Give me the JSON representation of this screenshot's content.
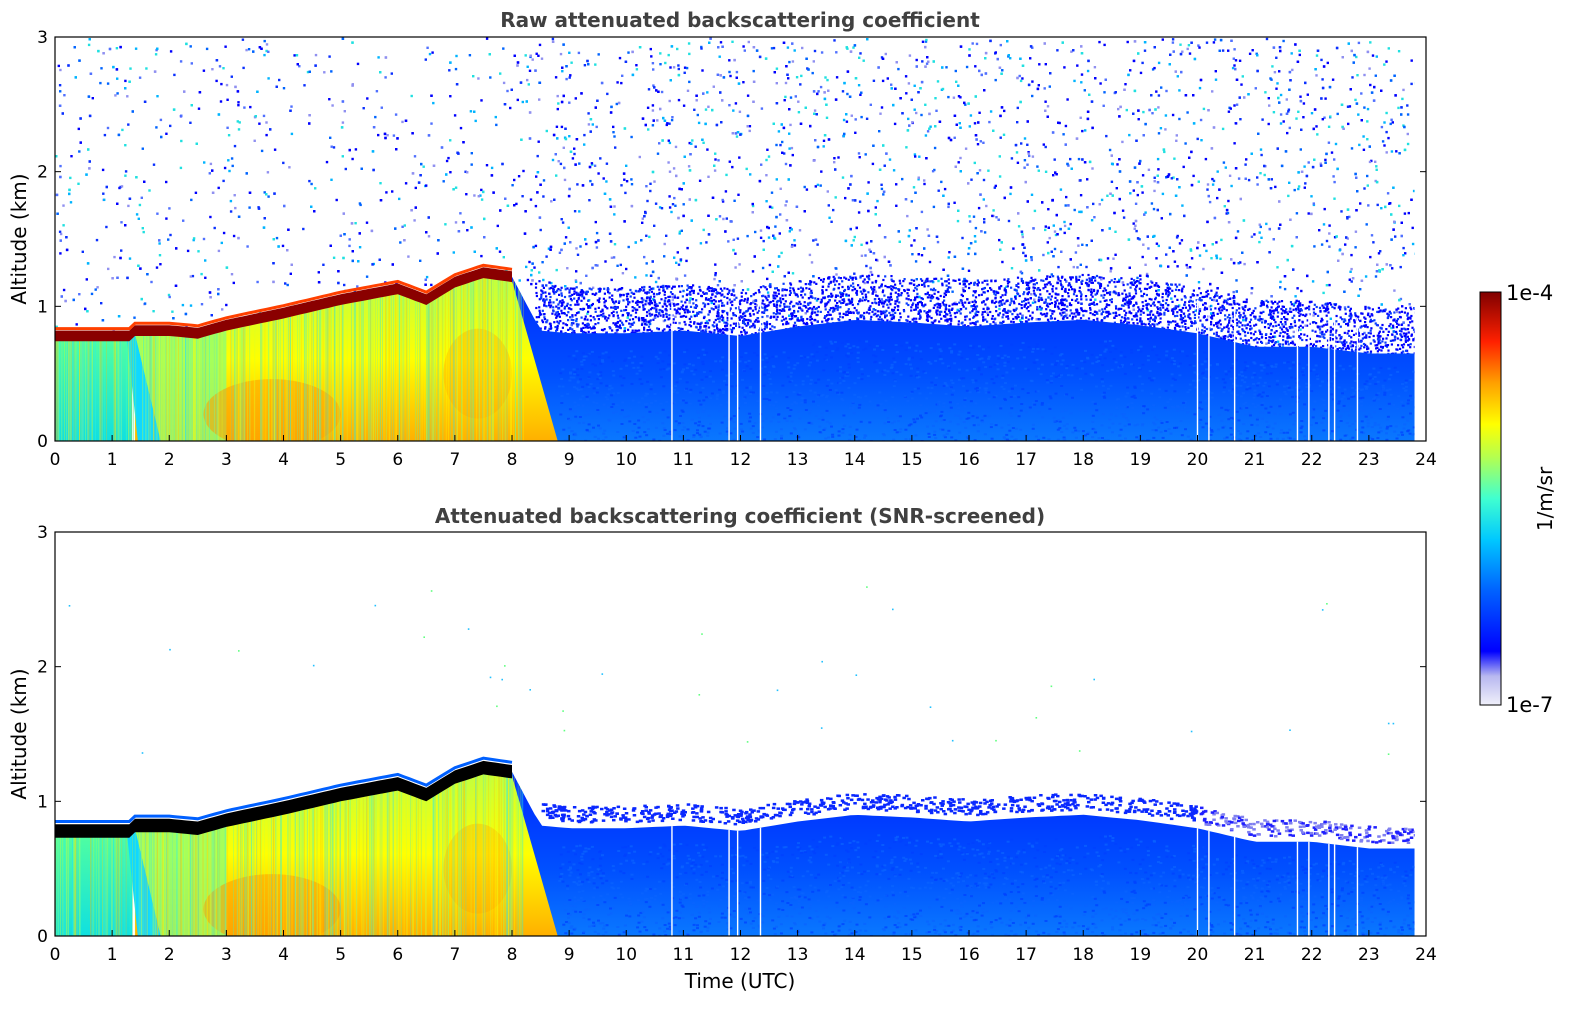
{
  "chart_data": [
    {
      "type": "heatmap",
      "title": "Raw attenuated backscattering coefficient",
      "xlabel": "",
      "ylabel": "Altitude (km)",
      "xlim": [
        0,
        24
      ],
      "ylim": [
        0,
        3
      ],
      "x_ticks": [
        "0",
        "1",
        "2",
        "3",
        "4",
        "5",
        "6",
        "7",
        "8",
        "9",
        "10",
        "11",
        "12",
        "13",
        "14",
        "15",
        "16",
        "17",
        "18",
        "19",
        "20",
        "21",
        "22",
        "23",
        "24"
      ],
      "y_ticks": [
        "0",
        "1",
        "2",
        "3"
      ],
      "data_end_hour": 23.8,
      "layer_top_km": {
        "x": [
          0,
          1.3,
          1.4,
          2,
          2.5,
          3,
          4,
          5,
          6,
          6.5,
          7,
          7.5,
          8,
          8.5,
          9,
          10,
          11,
          12,
          13,
          14,
          15,
          16,
          17,
          18,
          19,
          20,
          21,
          22,
          23,
          23.8
        ],
        "y": [
          0.78,
          0.78,
          0.82,
          0.82,
          0.8,
          0.86,
          0.95,
          1.05,
          1.13,
          1.05,
          1.18,
          1.25,
          1.22,
          0.82,
          0.8,
          0.8,
          0.82,
          0.78,
          0.85,
          0.9,
          0.88,
          0.85,
          0.88,
          0.9,
          0.86,
          0.8,
          0.7,
          0.7,
          0.65,
          0.65
        ]
      },
      "gap_lines_hour": [
        10.8,
        11.8,
        11.95,
        12.35,
        20.0,
        20.2,
        20.65,
        21.75,
        21.95,
        22.3,
        22.4,
        22.8
      ],
      "noisy_above_layer": true
    },
    {
      "type": "heatmap",
      "title": "Attenuated backscattering coefficient (SNR-screened)",
      "xlabel": "Time (UTC)",
      "ylabel": "Altitude (km)",
      "xlim": [
        0,
        24
      ],
      "ylim": [
        0,
        3
      ],
      "x_ticks": [
        "0",
        "1",
        "2",
        "3",
        "4",
        "5",
        "6",
        "7",
        "8",
        "9",
        "10",
        "11",
        "12",
        "13",
        "14",
        "15",
        "16",
        "17",
        "18",
        "19",
        "20",
        "21",
        "22",
        "23",
        "24"
      ],
      "y_ticks": [
        "0",
        "1",
        "2",
        "3"
      ],
      "data_end_hour": 23.8,
      "gap_lines_hour": [
        10.8,
        11.8,
        11.95,
        12.35,
        20.0,
        20.2,
        20.65,
        21.75,
        21.95,
        22.3,
        22.4,
        22.8
      ],
      "noisy_above_layer": false,
      "saturated_color": "#000000"
    }
  ],
  "colorbar": {
    "label": "1/m/sr",
    "max_label": "1e-4",
    "min_label": "1e-7",
    "colors": [
      "#f0f0fa",
      "#c6c6f0",
      "#9090f0",
      "#0000ff",
      "#0050ff",
      "#0096ff",
      "#00c8ff",
      "#40ffd0",
      "#a0ff60",
      "#ffff00",
      "#ffb000",
      "#ff5000",
      "#e00000",
      "#800000"
    ]
  }
}
